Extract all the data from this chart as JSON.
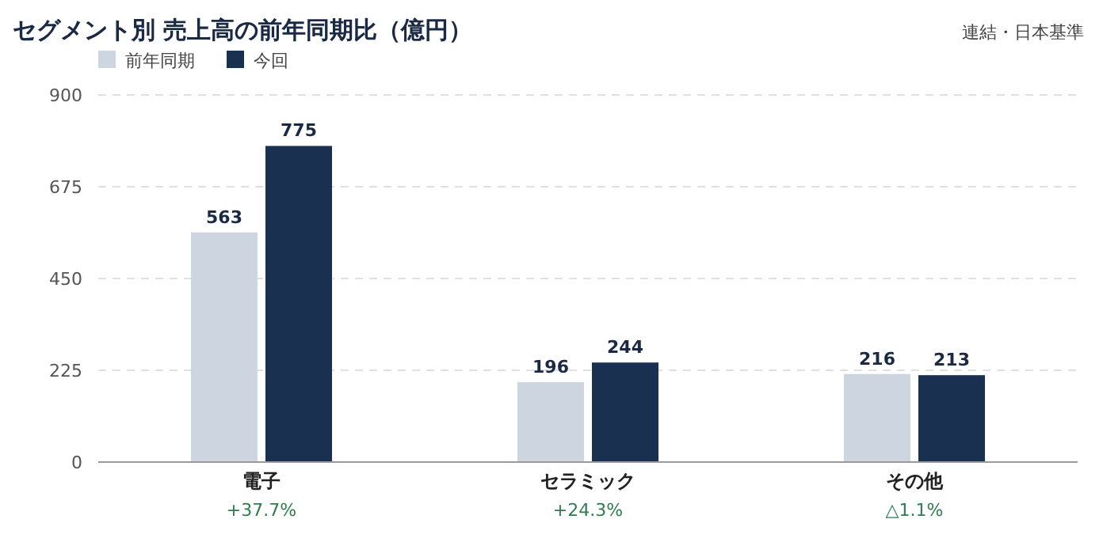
{
  "chart_data": {
    "type": "bar",
    "title": "セグメント別 売上高の前年同期比（億円）",
    "categories": [
      "電子",
      "セラミック",
      "その他"
    ],
    "series": [
      {
        "name": "前年同期",
        "color": "#cdd5e0",
        "values": [
          563,
          196,
          216
        ]
      },
      {
        "name": "今回",
        "color": "#1a3050",
        "values": [
          775,
          244,
          213
        ]
      }
    ],
    "ylim": [
      0,
      900
    ],
    "yticks": [
      0,
      225,
      450,
      675,
      900
    ],
    "grid": "y",
    "legend": "top left",
    "data_labels": true,
    "annotations": [
      "連結・日本基準",
      "+37.7%",
      "+24.3%",
      "△1.1%"
    ]
  }
}
